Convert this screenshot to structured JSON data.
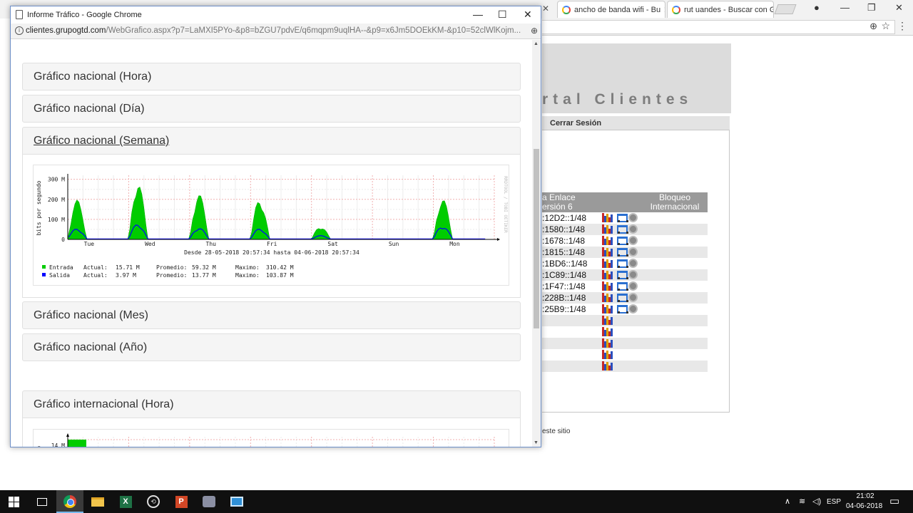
{
  "background_browser": {
    "tabs": [
      {
        "label": "ancho de banda wifi - Bu"
      },
      {
        "label": "rut uandes - Buscar con G"
      }
    ],
    "portal_title": "rtal Clientes",
    "logout_label": "Cerrar Sesión",
    "table": {
      "header_enlace": "a Enlace\nersión 6",
      "header_bloqueo": "Bloqueo\nInternacional",
      "rows": [
        {
          "addr": ":12D2::1/48",
          "icons": true
        },
        {
          "addr": ":1580::1/48",
          "icons": true
        },
        {
          "addr": ":1678::1/48",
          "icons": true
        },
        {
          "addr": ":1815::1/48",
          "icons": true
        },
        {
          "addr": ":1BD6::1/48",
          "icons": true
        },
        {
          "addr": ":1C89::1/48",
          "icons": true
        },
        {
          "addr": ":1F47::1/48",
          "icons": true
        },
        {
          "addr": ":228B::1/48",
          "icons": true
        },
        {
          "addr": ":25B9::1/48",
          "icons": true
        },
        {
          "addr": "",
          "icons": false
        },
        {
          "addr": "",
          "icons": false
        },
        {
          "addr": "",
          "icons": false
        },
        {
          "addr": "",
          "icons": false
        },
        {
          "addr": "",
          "icons": false
        }
      ]
    },
    "footer_text": "este sitio"
  },
  "popup": {
    "title": "Informe Tráfico - Google Chrome",
    "url_host": "clientes.grupogtd.com",
    "url_path": "/WebGrafico.aspx?p7=LaMXI5PYo-&p8=bZGU7pdvE/q6mqpm9uqlHA--&p9=x6Jm5DOEkKM-&p10=52clWlKojm...",
    "panels": [
      {
        "label": "Gráfico nacional (Hora)"
      },
      {
        "label": "Gráfico nacional (Día)"
      },
      {
        "label": "Gráfico nacional (Semana)"
      },
      {
        "label": "Gráfico nacional (Mes)"
      },
      {
        "label": "Gráfico nacional (Año)"
      },
      {
        "label": "Gráfico internacional (Hora)"
      }
    ]
  },
  "chart_data": {
    "type": "area",
    "ylabel": "bits por segundo",
    "yticks": [
      "300 M",
      "200 M",
      "100 M",
      "0"
    ],
    "ylim": [
      0,
      320
    ],
    "categories": [
      "Tue",
      "Wed",
      "Thu",
      "Fri",
      "Sat",
      "Sun",
      "Mon"
    ],
    "range_label": "Desde 28-05-2018 20:57:34 hasta 04-06-2018 20:57:34",
    "right_label": "RRDTOOL / TOBI OETIKER",
    "series": [
      {
        "name": "Entrada",
        "color": "#00cc00",
        "actual": "15.71 M",
        "promedio": "59.32 M",
        "maximo": "310.42 M",
        "peaks": [
          210,
          305,
          245,
          215,
          70,
          0,
          220
        ]
      },
      {
        "name": "Salida",
        "color": "#0000ff",
        "actual": "3.97 M",
        "promedio": "13.77 M",
        "maximo": "103.87 M",
        "peaks": [
          55,
          80,
          60,
          55,
          18,
          0,
          70
        ]
      }
    ],
    "legend_labels": {
      "actual": "Actual:",
      "promedio": "Promedio:",
      "maximo": "Maximo:"
    }
  },
  "intl_chart": {
    "yticks": [
      "14 M"
    ],
    "ylabel_fragment": "ndo"
  },
  "taskbar": {
    "lang": "ESP",
    "time": "21:02",
    "date": "04-06-2018"
  }
}
